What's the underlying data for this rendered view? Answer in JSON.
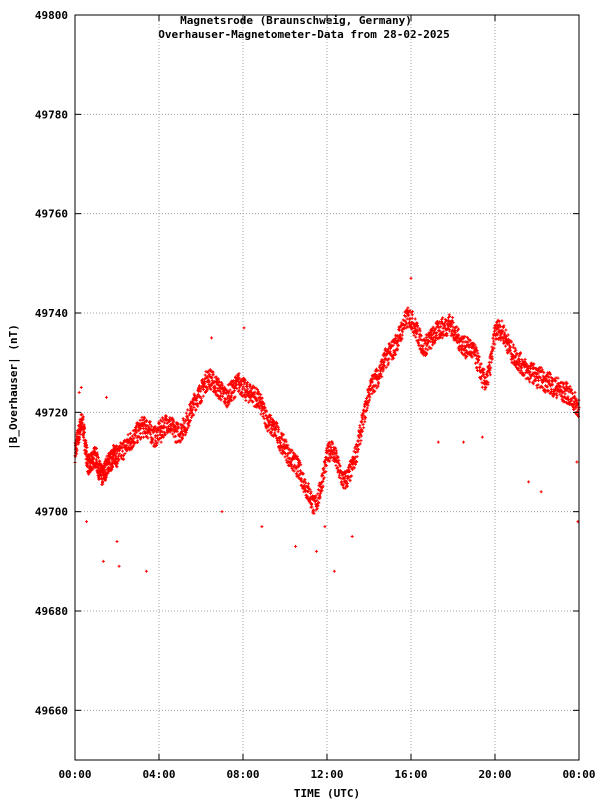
{
  "chart_data": {
    "type": "scatter",
    "title": "Magnetsrode (Braunschweig, Germany)",
    "subtitle": "Overhauser-Magnetometer-Data from 28-02-2025",
    "xlabel": "TIME (UTC)",
    "ylabel": "|B_Overhauser| (nT)",
    "x_unit": "hours UTC",
    "xlim": [
      0,
      24
    ],
    "ylim": [
      49650,
      49800
    ],
    "x_ticks": [
      {
        "value": 0,
        "label": "00:00"
      },
      {
        "value": 4,
        "label": "04:00"
      },
      {
        "value": 8,
        "label": "08:00"
      },
      {
        "value": 12,
        "label": "12:00"
      },
      {
        "value": 16,
        "label": "16:00"
      },
      {
        "value": 20,
        "label": "20:00"
      },
      {
        "value": 24,
        "label": "00:00"
      }
    ],
    "y_ticks": [
      {
        "value": 49800,
        "label": "49800"
      },
      {
        "value": 49780,
        "label": "49780"
      },
      {
        "value": 49760,
        "label": "49760"
      },
      {
        "value": 49740,
        "label": "49740"
      },
      {
        "value": 49720,
        "label": "49720"
      },
      {
        "value": 49700,
        "label": "49700"
      },
      {
        "value": 49680,
        "label": "49680"
      },
      {
        "value": 49660,
        "label": "49660"
      }
    ],
    "grid": true,
    "marker_color": "#ff0000",
    "series": [
      {
        "x": [
          0.0,
          0.1,
          0.2,
          0.3,
          0.4,
          0.5,
          0.6,
          0.7,
          0.8,
          0.9,
          1.0,
          1.1,
          1.2,
          1.3,
          1.4,
          1.5,
          1.6,
          1.7,
          1.8,
          1.9,
          2.0,
          2.2,
          2.4,
          2.6,
          2.8,
          3.0,
          3.2,
          3.4,
          3.6,
          3.8,
          4.0,
          4.2,
          4.4,
          4.6,
          4.8,
          5.0,
          5.2,
          5.4,
          5.6,
          5.8,
          6.0,
          6.2,
          6.4,
          6.6,
          6.8,
          7.0,
          7.2,
          7.4,
          7.6,
          7.8,
          8.0,
          8.2,
          8.4,
          8.6,
          8.8,
          9.0,
          9.2,
          9.4,
          9.6,
          9.8,
          10.0,
          10.2,
          10.4,
          10.6,
          10.8,
          11.0,
          11.2,
          11.4,
          11.6,
          11.8,
          12.0,
          12.2,
          12.4,
          12.6,
          12.8,
          13.0,
          13.2,
          13.4,
          13.6,
          13.8,
          14.0,
          14.2,
          14.4,
          14.6,
          14.8,
          15.0,
          15.2,
          15.4,
          15.6,
          15.8,
          16.0,
          16.2,
          16.4,
          16.6,
          16.8,
          17.0,
          17.2,
          17.4,
          17.6,
          17.8,
          18.0,
          18.2,
          18.4,
          18.6,
          18.8,
          19.0,
          19.2,
          19.4,
          19.6,
          19.8,
          20.0,
          20.2,
          20.4,
          20.6,
          20.8,
          21.0,
          21.2,
          21.4,
          21.6,
          21.8,
          22.0,
          22.2,
          22.4,
          22.6,
          22.8,
          23.0,
          23.2,
          23.4,
          23.6,
          23.8,
          24.0
        ],
        "y": [
          49712,
          49714,
          49716,
          49718,
          49717,
          49713,
          49710,
          49709,
          49710,
          49711,
          49711,
          49709,
          49708,
          49707,
          49708,
          49709,
          49710,
          49710,
          49711,
          49712,
          49711,
          49712,
          49713,
          49714,
          49715,
          49716,
          49717,
          49717,
          49716,
          49715,
          49716,
          49717,
          49718,
          49717,
          49716,
          49716,
          49717,
          49719,
          49721,
          49723,
          49724,
          49726,
          49727,
          49726,
          49725,
          49724,
          49723,
          49724,
          49725,
          49726,
          49725,
          49724,
          49724,
          49723,
          49722,
          49720,
          49718,
          49717,
          49716,
          49714,
          49713,
          49711,
          49710,
          49709,
          49707,
          49705,
          49703,
          49701,
          49703,
          49707,
          49711,
          49713,
          49711,
          49708,
          49706,
          49707,
          49709,
          49712,
          49716,
          49720,
          49724,
          49726,
          49727,
          49729,
          49731,
          49732,
          49733,
          49735,
          49737,
          49739,
          49739,
          49737,
          49735,
          49733,
          49734,
          49735,
          49736,
          49737,
          49737,
          49738,
          49737,
          49735,
          49734,
          49733,
          49733,
          49732,
          49730,
          49727,
          49726,
          49730,
          49736,
          49737,
          49736,
          49734,
          49732,
          49731,
          49730,
          49729,
          49728,
          49728,
          49727,
          49727,
          49726,
          49726,
          49725,
          49725,
          49724,
          49724,
          49723,
          49722,
          49721
        ]
      }
    ],
    "outliers": {
      "x": [
        0.2,
        0.3,
        0.55,
        1.35,
        1.5,
        2.0,
        2.1,
        3.4,
        4.1,
        6.5,
        7.0,
        8.05,
        8.9,
        10.5,
        11.5,
        11.9,
        12.35,
        13.2,
        16.0,
        17.3,
        18.5,
        19.4,
        21.6,
        22.2,
        23.9,
        23.95
      ],
      "y": [
        49724,
        49725,
        49698,
        49690,
        49723,
        49694,
        49689,
        49688,
        49714,
        49735,
        49700,
        49737,
        49697,
        49693,
        49692,
        49697,
        49688,
        49695,
        49747,
        49714,
        49714,
        49715,
        49706,
        49704,
        49710,
        49698
      ]
    }
  }
}
